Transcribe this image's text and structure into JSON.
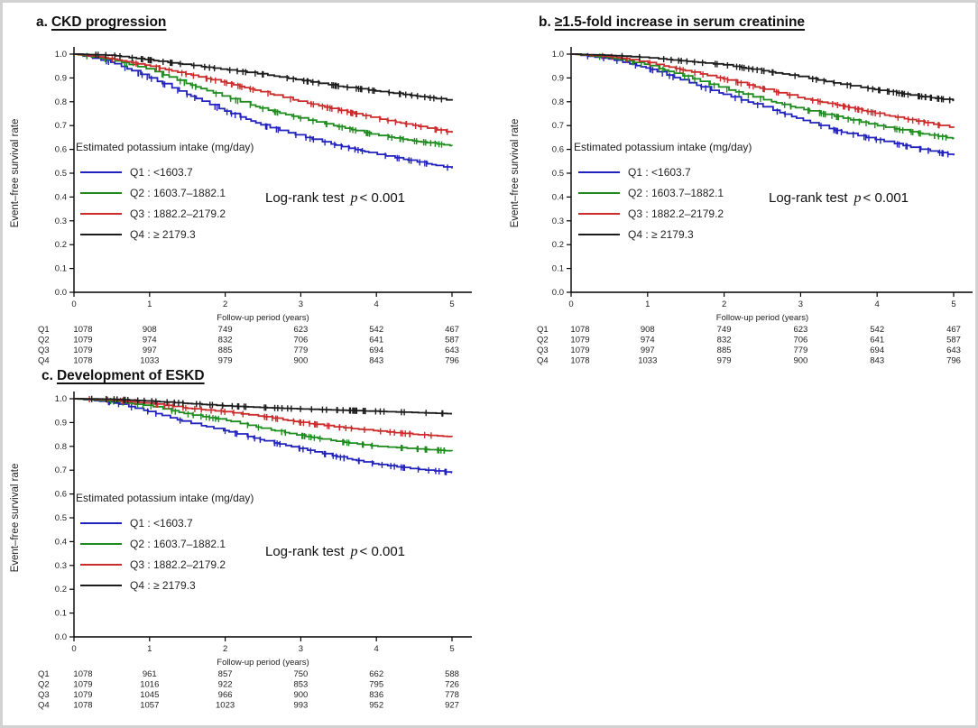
{
  "figure": {
    "ylabel": "Event–free survival rate",
    "xlabel": "Follow-up period (years)",
    "logrank_prefix": "Log-rank test",
    "logrank_p": "p",
    "logrank_value": "< 0.001"
  },
  "chart_data": [
    {
      "id": "a",
      "type": "line",
      "panel_label": "a.",
      "title": "CKD progression",
      "xlabel": "Follow-up period (years)",
      "ylabel": "Event–free survival rate",
      "xlim": [
        0,
        5
      ],
      "ylim": [
        0.0,
        1.0
      ],
      "xticks": [
        0,
        1,
        2,
        3,
        4,
        5
      ],
      "ytick_step": 0.1,
      "annotation": "Log-rank test p < 0.001",
      "legend": {
        "title": "Estimated potassium intake (mg/day)",
        "position": "left-middle",
        "entries": [
          "Q1 : <1603.7",
          "Q2 : 1603.7–1882.1",
          "Q3 : 1882.2–2179.2",
          "Q4 : ≥ 2179.3"
        ]
      },
      "series": [
        {
          "name": "Q1",
          "color": "#2222bd",
          "x": [
            0,
            0.5,
            1,
            1.5,
            2,
            2.5,
            3,
            3.5,
            4,
            4.5,
            5
          ],
          "y": [
            1.0,
            0.965,
            0.9,
            0.83,
            0.76,
            0.7,
            0.655,
            0.615,
            0.58,
            0.55,
            0.52
          ]
        },
        {
          "name": "Q2",
          "color": "#1f8c1f",
          "x": [
            0,
            0.5,
            1,
            1.5,
            2,
            2.5,
            3,
            3.5,
            4,
            4.5,
            5
          ],
          "y": [
            1.0,
            0.975,
            0.935,
            0.875,
            0.82,
            0.77,
            0.73,
            0.695,
            0.66,
            0.635,
            0.615
          ]
        },
        {
          "name": "Q3",
          "color": "#cc2b2b",
          "x": [
            0,
            0.5,
            1,
            1.5,
            2,
            2.5,
            3,
            3.5,
            4,
            4.5,
            5
          ],
          "y": [
            1.0,
            0.98,
            0.95,
            0.915,
            0.88,
            0.84,
            0.8,
            0.765,
            0.73,
            0.7,
            0.67
          ]
        },
        {
          "name": "Q4",
          "color": "#1c1c1c",
          "x": [
            0,
            0.5,
            1,
            1.5,
            2,
            2.5,
            3,
            3.5,
            4,
            4.5,
            5
          ],
          "y": [
            1.0,
            0.995,
            0.975,
            0.955,
            0.935,
            0.915,
            0.89,
            0.865,
            0.845,
            0.825,
            0.805
          ]
        }
      ],
      "risk_table": {
        "rows": [
          {
            "label": "Q1",
            "counts": [
              1078,
              908,
              749,
              623,
              542,
              467
            ]
          },
          {
            "label": "Q2",
            "counts": [
              1079,
              974,
              832,
              706,
              641,
              587
            ]
          },
          {
            "label": "Q3",
            "counts": [
              1079,
              997,
              885,
              779,
              694,
              643
            ]
          },
          {
            "label": "Q4",
            "counts": [
              1078,
              1033,
              979,
              900,
              843,
              796
            ]
          }
        ]
      }
    },
    {
      "id": "b",
      "type": "line",
      "panel_label": "b.",
      "title": "≥1.5-fold increase in serum creatinine",
      "xlabel": "Follow-up period (years)",
      "ylabel": "Event–free survival rate",
      "xlim": [
        0,
        5
      ],
      "ylim": [
        0.0,
        1.0
      ],
      "xticks": [
        0,
        1,
        2,
        3,
        4,
        5
      ],
      "ytick_step": 0.1,
      "annotation": "Log-rank test p < 0.001",
      "legend": {
        "title": "Estimated potassium intake (mg/day)",
        "position": "left-middle",
        "entries": [
          "Q1 : <1603.7",
          "Q2 : 1603.7–1882.1",
          "Q3 : 1882.2–2179.2",
          "Q4 : ≥ 2179.3"
        ]
      },
      "series": [
        {
          "name": "Q1",
          "color": "#2222bd",
          "x": [
            0,
            0.5,
            1,
            1.5,
            2,
            2.5,
            3,
            3.5,
            4,
            4.5,
            5
          ],
          "y": [
            1.0,
            0.98,
            0.94,
            0.885,
            0.83,
            0.78,
            0.725,
            0.675,
            0.64,
            0.605,
            0.575
          ]
        },
        {
          "name": "Q2",
          "color": "#1f8c1f",
          "x": [
            0,
            0.5,
            1,
            1.5,
            2,
            2.5,
            3,
            3.5,
            4,
            4.5,
            5
          ],
          "y": [
            1.0,
            0.985,
            0.955,
            0.905,
            0.855,
            0.81,
            0.77,
            0.735,
            0.7,
            0.67,
            0.645
          ]
        },
        {
          "name": "Q3",
          "color": "#cc2b2b",
          "x": [
            0,
            0.5,
            1,
            1.5,
            2,
            2.5,
            3,
            3.5,
            4,
            4.5,
            5
          ],
          "y": [
            1.0,
            0.99,
            0.965,
            0.93,
            0.895,
            0.855,
            0.815,
            0.785,
            0.75,
            0.72,
            0.69
          ]
        },
        {
          "name": "Q4",
          "color": "#1c1c1c",
          "x": [
            0,
            0.5,
            1,
            1.5,
            2,
            2.5,
            3,
            3.5,
            4,
            4.5,
            5
          ],
          "y": [
            1.0,
            0.995,
            0.985,
            0.97,
            0.955,
            0.93,
            0.905,
            0.875,
            0.85,
            0.825,
            0.805
          ]
        }
      ],
      "risk_table": {
        "rows": [
          {
            "label": "Q1",
            "counts": [
              1078,
              908,
              749,
              623,
              542,
              467
            ]
          },
          {
            "label": "Q2",
            "counts": [
              1079,
              974,
              832,
              706,
              641,
              587
            ]
          },
          {
            "label": "Q3",
            "counts": [
              1079,
              997,
              885,
              779,
              694,
              643
            ]
          },
          {
            "label": "Q4",
            "counts": [
              1078,
              1033,
              979,
              900,
              843,
              796
            ]
          }
        ]
      }
    },
    {
      "id": "c",
      "type": "line",
      "panel_label": "c.",
      "title": "Development of ESKD",
      "xlabel": "Follow-up period (years)",
      "ylabel": "Event–free survival rate",
      "xlim": [
        0,
        5
      ],
      "ylim": [
        0.0,
        1.0
      ],
      "xticks": [
        0,
        1,
        2,
        3,
        4,
        5
      ],
      "ytick_step": 0.1,
      "annotation": "Log-rank test p < 0.001",
      "legend": {
        "title": "Estimated potassium intake (mg/day)",
        "position": "left-middle",
        "entries": [
          "Q1 : <1603.7",
          "Q2 : 1603.7–1882.1",
          "Q3 : 1882.2–2179.2",
          "Q4 : ≥ 2179.3"
        ]
      },
      "series": [
        {
          "name": "Q1",
          "color": "#2222bd",
          "x": [
            0,
            0.5,
            1,
            1.5,
            2,
            2.5,
            3,
            3.5,
            4,
            4.5,
            5
          ],
          "y": [
            1.0,
            0.985,
            0.945,
            0.9,
            0.865,
            0.825,
            0.79,
            0.755,
            0.725,
            0.705,
            0.69
          ]
        },
        {
          "name": "Q2",
          "color": "#1f8c1f",
          "x": [
            0,
            0.5,
            1,
            1.5,
            2,
            2.5,
            3,
            3.5,
            4,
            4.5,
            5
          ],
          "y": [
            1.0,
            0.99,
            0.97,
            0.935,
            0.91,
            0.875,
            0.845,
            0.82,
            0.8,
            0.79,
            0.78
          ]
        },
        {
          "name": "Q3",
          "color": "#cc2b2b",
          "x": [
            0,
            0.5,
            1,
            1.5,
            2,
            2.5,
            3,
            3.5,
            4,
            4.5,
            5
          ],
          "y": [
            1.0,
            0.995,
            0.98,
            0.96,
            0.945,
            0.925,
            0.9,
            0.88,
            0.865,
            0.85,
            0.84
          ]
        },
        {
          "name": "Q4",
          "color": "#1c1c1c",
          "x": [
            0,
            0.5,
            1,
            1.5,
            2,
            2.5,
            3,
            3.5,
            4,
            4.5,
            5
          ],
          "y": [
            1.0,
            0.998,
            0.99,
            0.98,
            0.97,
            0.963,
            0.957,
            0.952,
            0.947,
            0.942,
            0.937
          ]
        }
      ],
      "risk_table": {
        "rows": [
          {
            "label": "Q1",
            "counts": [
              1078,
              961,
              857,
              750,
              662,
              588
            ]
          },
          {
            "label": "Q2",
            "counts": [
              1079,
              1016,
              922,
              853,
              795,
              726
            ]
          },
          {
            "label": "Q3",
            "counts": [
              1079,
              1045,
              966,
              900,
              836,
              778
            ]
          },
          {
            "label": "Q4",
            "counts": [
              1078,
              1057,
              1023,
              993,
              952,
              927
            ]
          }
        ]
      }
    }
  ]
}
